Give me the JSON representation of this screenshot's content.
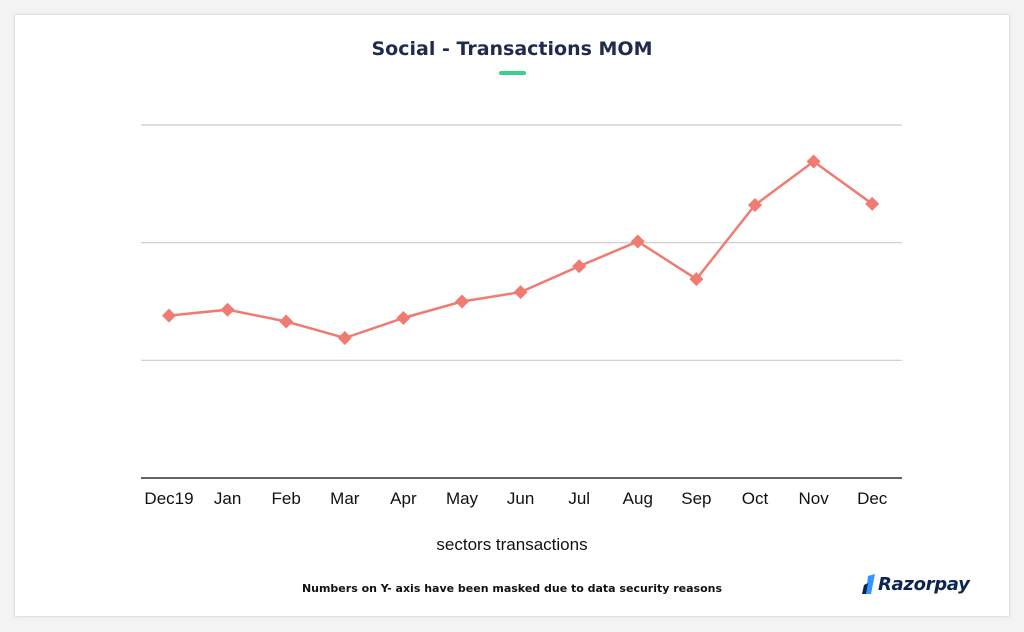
{
  "chart_data": {
    "type": "line",
    "title": "Social - Transactions MOM",
    "xlabel": "sectors transactions",
    "ylabel": "",
    "categories": [
      "Dec19",
      "Jan",
      "Feb",
      "Mar",
      "Apr",
      "May",
      "Jun",
      "Jul",
      "Aug",
      "Sep",
      "Oct",
      "Nov",
      "Dec"
    ],
    "series": [
      {
        "values": [
          1.38,
          1.43,
          1.33,
          1.19,
          1.36,
          1.5,
          1.58,
          1.8,
          2.01,
          1.69,
          2.32,
          2.69,
          2.33
        ]
      }
    ],
    "ylim": [
      0,
      3
    ],
    "grid": true,
    "y_tick_labels_masked": true,
    "color": "#ef7b73"
  },
  "footnote": "Numbers on Y- axis have been masked due to data security reasons",
  "brand": {
    "name": "Razorpay",
    "color": "#0c2451",
    "accent": "#3395ff"
  },
  "colors": {
    "title_underline": "#3ecf8e",
    "grid": "#cccccc",
    "axis": "#333333"
  }
}
